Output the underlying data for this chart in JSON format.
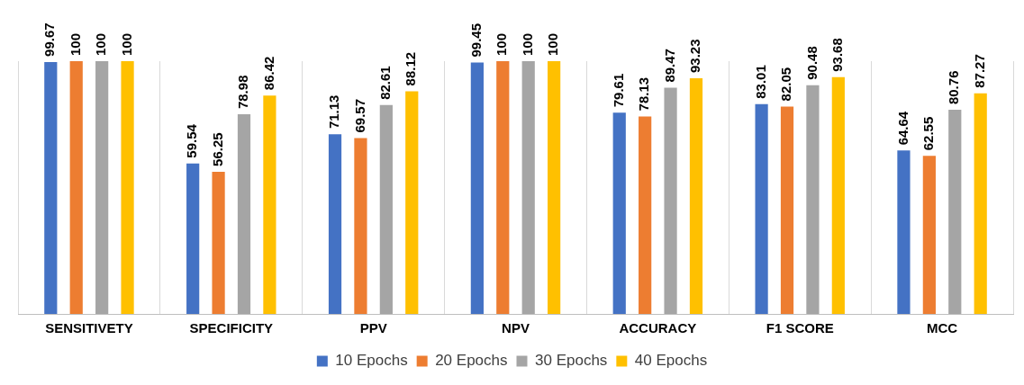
{
  "chart_data": {
    "type": "bar",
    "categories": [
      "SENSITIVETY",
      "SPECIFICITY",
      "PPV",
      "NPV",
      "ACCURACY",
      "F1 SCORE",
      "MCC"
    ],
    "series": [
      {
        "name": "10 Epochs",
        "color": "#4472c4",
        "values": [
          99.67,
          59.54,
          71.13,
          99.45,
          79.61,
          83.01,
          64.64
        ]
      },
      {
        "name": "20 Epochs",
        "color": "#ed7d31",
        "values": [
          100,
          56.25,
          69.57,
          100,
          78.13,
          82.05,
          62.55
        ]
      },
      {
        "name": "30 Epochs",
        "color": "#a5a5a5",
        "values": [
          100,
          78.98,
          82.61,
          100,
          89.47,
          90.48,
          80.76
        ]
      },
      {
        "name": "40 Epochs",
        "color": "#ffc000",
        "values": [
          100,
          86.42,
          88.12,
          100,
          93.23,
          93.68,
          87.27
        ]
      }
    ],
    "data_labels": true,
    "grid": "x",
    "legend": "bottom",
    "tick_labels": "x"
  }
}
